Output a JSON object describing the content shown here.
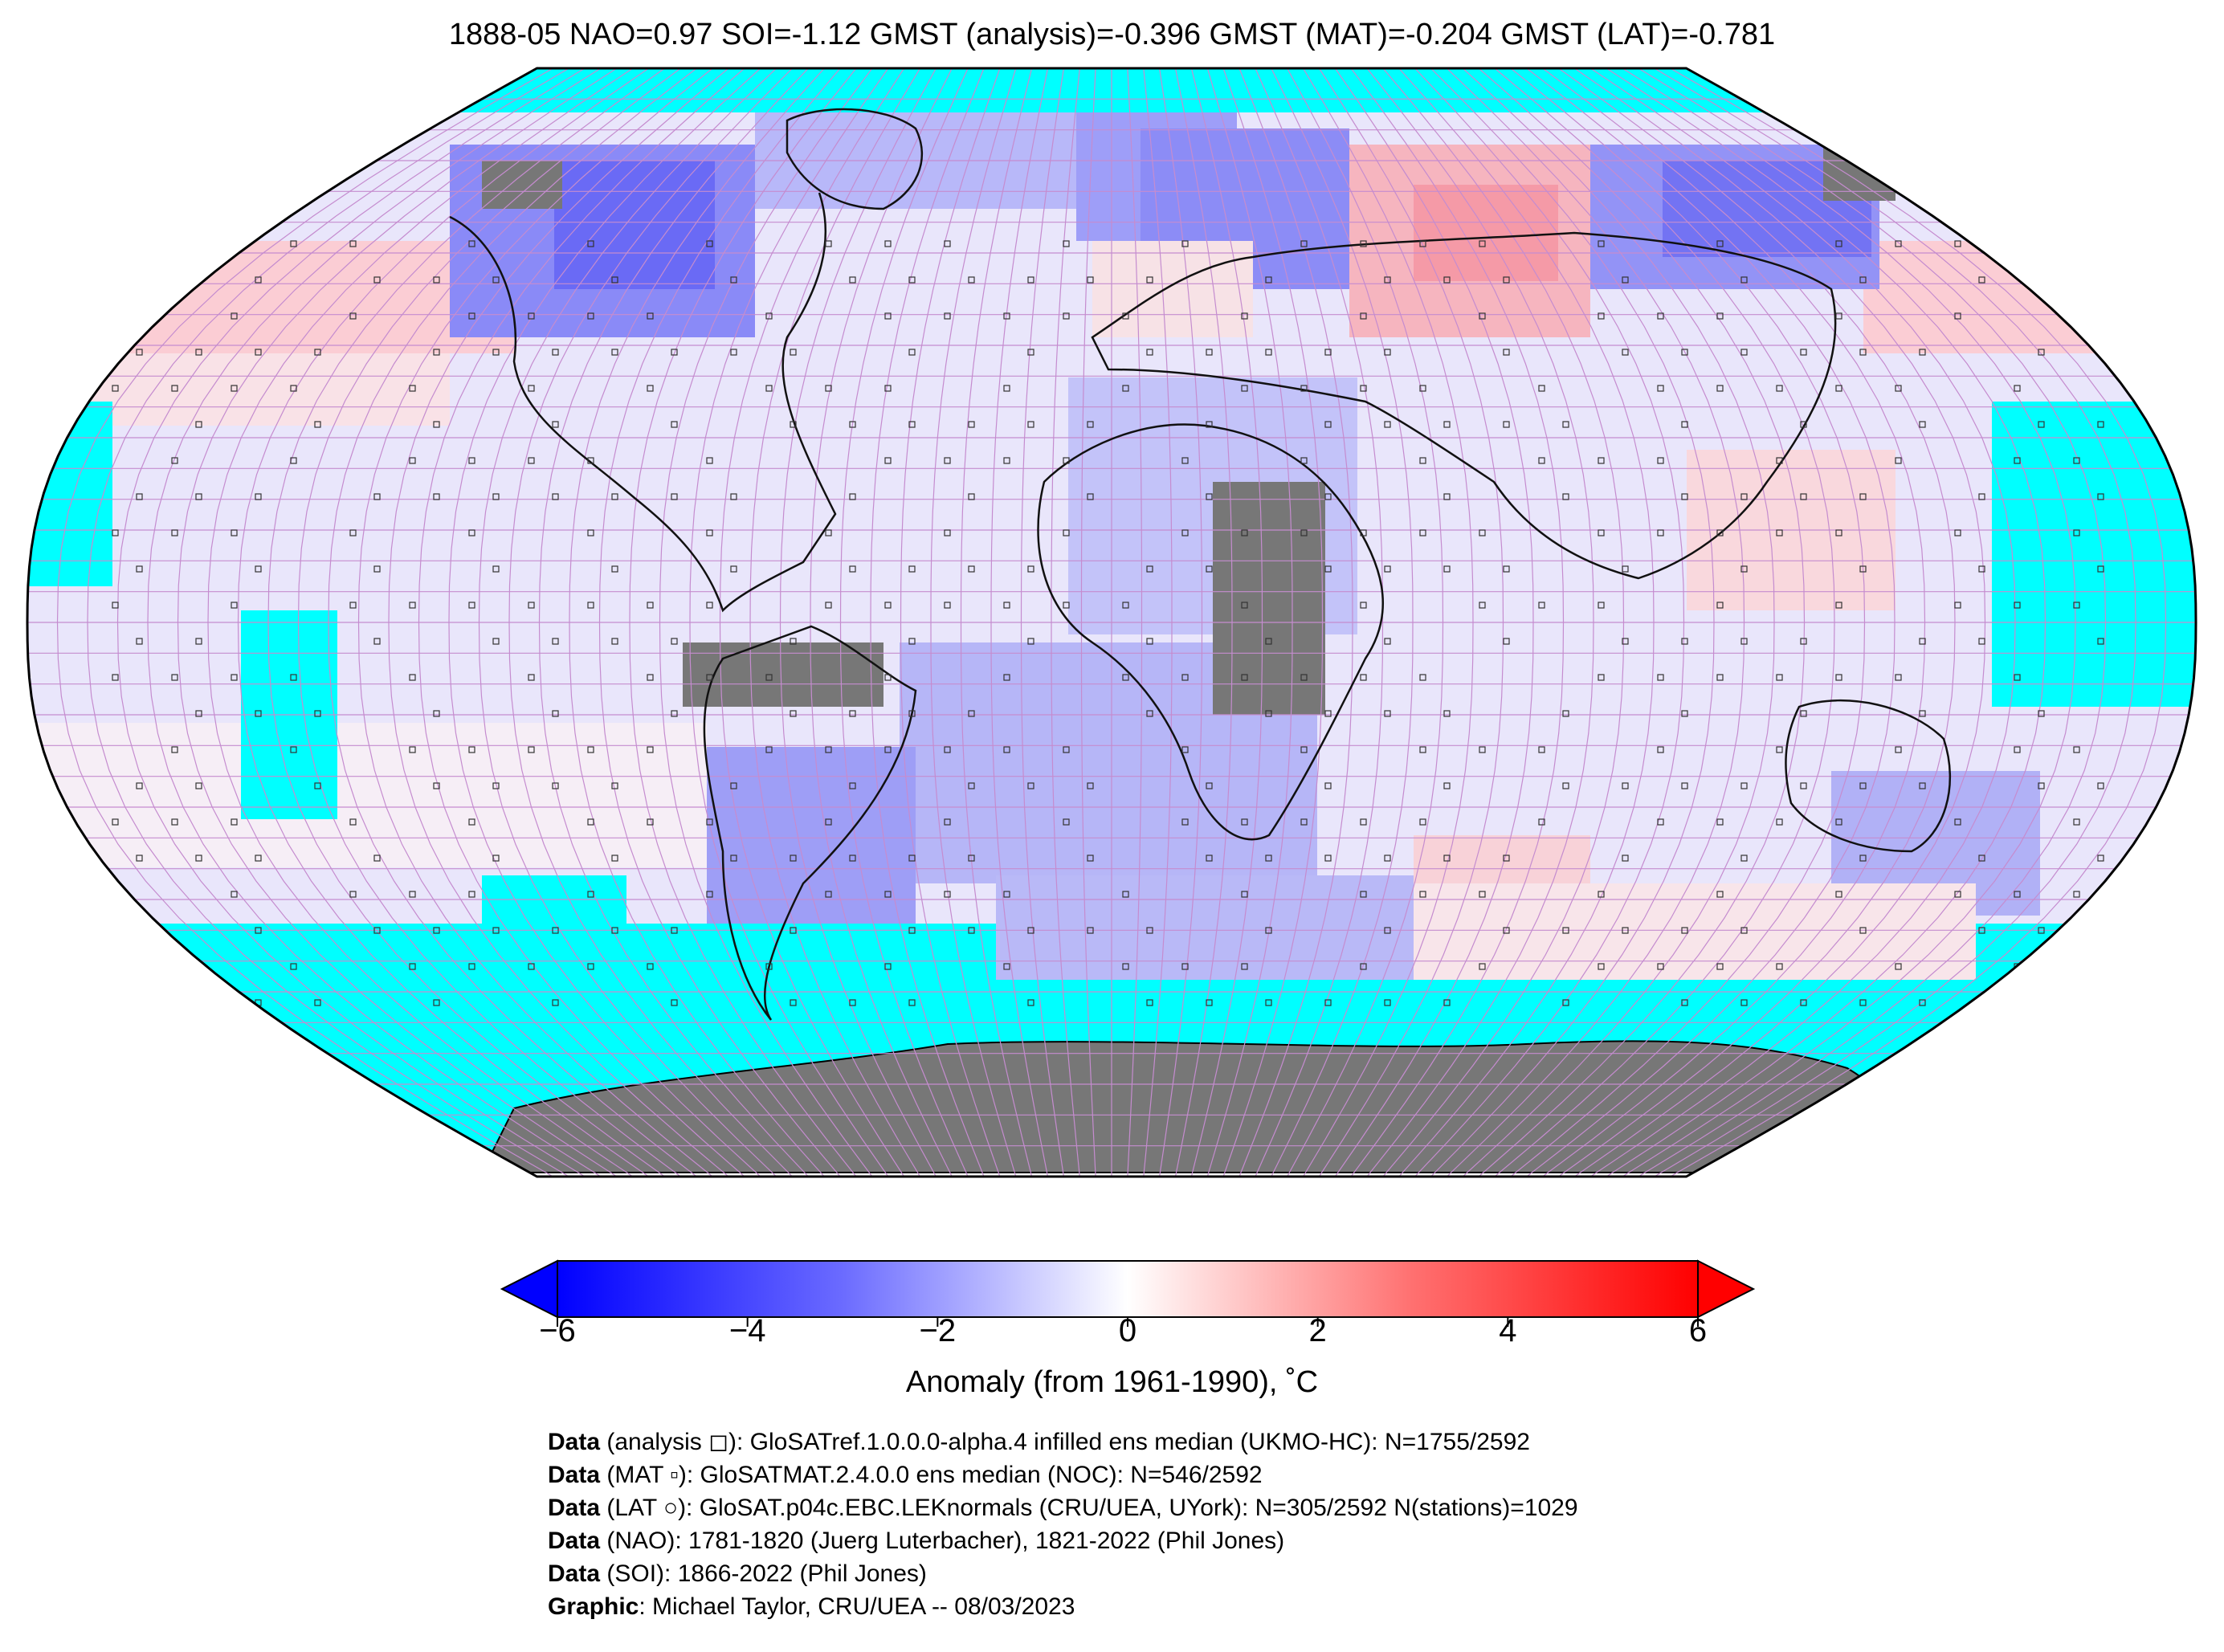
{
  "title": "1888-05 NAO=0.97 SOI=-1.12 GMST (analysis)=-0.396 GMST (MAT)=-0.204 GMST (LAT)=-0.781",
  "colors": {
    "cold_max": "#0000ff",
    "warm_max": "#ff0000",
    "neutral": "#ffffff",
    "ocean_no_data": "#00ffff",
    "land_no_data": "#777777",
    "grid_lines": "#c58ccf"
  },
  "colorbar": {
    "ticks": [
      "−6",
      "−4",
      "−2",
      "0",
      "2",
      "4",
      "6"
    ],
    "label": "Anomaly (from 1961-1990), ˚C",
    "range": [
      -6,
      6
    ]
  },
  "credits": [
    {
      "bold": "Data",
      "text": " (analysis ◻): GloSATref.1.0.0.0-alpha.4 infilled ens median (UKMO-HC): N=1755/2592"
    },
    {
      "bold": "Data",
      "text": " (MAT ▫): GloSATMAT.2.4.0.0 ens median (NOC): N=546/2592"
    },
    {
      "bold": "Data",
      "text": " (LAT ○): GloSAT.p04c.EBC.LEKnormals (CRU/UEA, UYork): N=305/2592 N(stations)=1029"
    },
    {
      "bold": "Data",
      "text": " (NAO): 1781-1820 (Juerg Luterbacher), 1821-2022 (Phil Jones)"
    },
    {
      "bold": "Data",
      "text": " (SOI): 1866-2022 (Phil Jones)"
    },
    {
      "bold": "Graphic",
      "text": ": Michael Taylor, CRU/UEA -- 08/03/2023"
    }
  ]
}
